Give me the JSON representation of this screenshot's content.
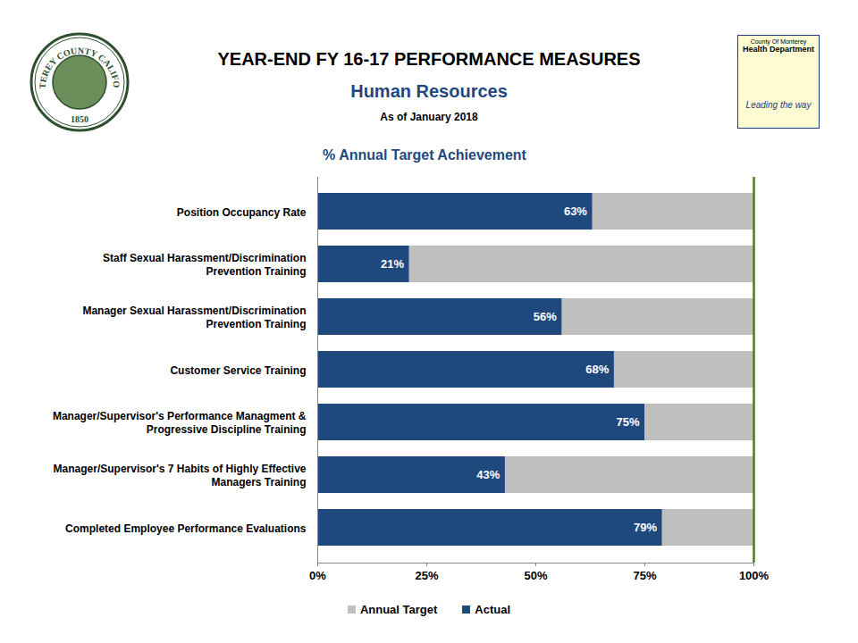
{
  "chart_data": {
    "type": "bar",
    "orientation": "horizontal",
    "title": "YEAR-END FY 16-17 PERFORMANCE MEASURES",
    "subtitle": "Human Resources",
    "annotations": [
      "As of January 2018",
      "% Annual Target Achievement",
      "MONTEREY COUNTY CALIFORNIA",
      "1850",
      "County Of Monterey",
      "Health Department",
      "Leading the way"
    ],
    "categories": [
      "Position Occupancy Rate",
      "Staff Sexual Harassment/Discrimination Prevention Training",
      "Manager Sexual Harassment/Discrimination Prevention Training",
      "Customer Service Training",
      "Manager/Supervisor's Performance Managment & Progressive Discipline Training",
      "Manager/Supervisor's 7 Habits of Highly Effective Managers Training",
      "Completed Employee Performance Evaluations"
    ],
    "series": [
      {
        "name": "Annual Target",
        "color": "#bfbfbf",
        "values": [
          100,
          100,
          100,
          100,
          100,
          100,
          100
        ]
      },
      {
        "name": "Actual",
        "color": "#1f497d",
        "values": [
          63,
          21,
          56,
          68,
          75,
          43,
          79
        ],
        "value_labels": [
          "63%",
          "21%",
          "56%",
          "68%",
          "75%",
          "43%",
          "79%"
        ]
      }
    ],
    "xlim": [
      0,
      100
    ],
    "xticks": [
      {
        "value": 0,
        "label": "0%"
      },
      {
        "value": 25,
        "label": "25%"
      },
      {
        "value": 50,
        "label": "50%"
      },
      {
        "value": 75,
        "label": "75%"
      },
      {
        "value": 100,
        "label": "100%"
      }
    ],
    "data_labels": true,
    "legend": "bottom",
    "grid": false
  }
}
